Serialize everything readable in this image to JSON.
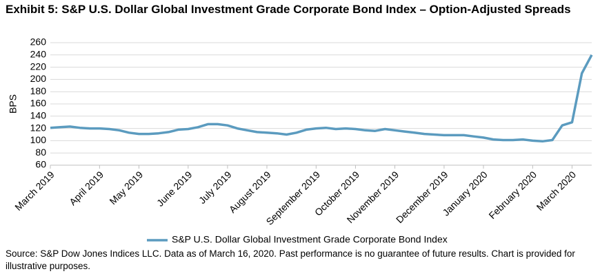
{
  "chart_data": {
    "type": "line",
    "title": "Exhibit 5: S&P U.S. Dollar Global Investment Grade Corporate Bond Index – Option-Adjusted Spreads",
    "y_label": "BPS",
    "source": "Source: S&P Dow Jones Indices LLC. Data as of March 16, 2020. Past performance is no guarantee of future results. Chart is provided for illustrative purposes.",
    "categories": [
      "March 2019",
      null,
      null,
      null,
      null,
      "April 2019",
      null,
      null,
      null,
      "May 2019",
      null,
      null,
      null,
      null,
      "June 2019",
      null,
      null,
      null,
      "July 2019",
      null,
      null,
      null,
      "August 2019",
      null,
      null,
      null,
      null,
      "September 2019",
      null,
      null,
      null,
      "October 2019",
      null,
      null,
      null,
      "November 2019",
      null,
      null,
      null,
      null,
      "December 2019",
      null,
      null,
      null,
      "January 2020",
      null,
      null,
      null,
      null,
      "February 2020",
      null,
      null,
      null,
      "March 2020",
      null,
      null
    ],
    "series": [
      {
        "name": "S&P U.S. Dollar Global Investment Grade Corporate Bond Index",
        "color": "#5b9bbf",
        "values": [
          121,
          122,
          123,
          121,
          120,
          120,
          119,
          117,
          113,
          111,
          111,
          112,
          114,
          118,
          119,
          122,
          127,
          127,
          125,
          120,
          117,
          114,
          113,
          112,
          110,
          113,
          118,
          120,
          121,
          119,
          120,
          119,
          117,
          116,
          119,
          117,
          115,
          113,
          111,
          110,
          109,
          109,
          109,
          107,
          105,
          102,
          101,
          101,
          102,
          100,
          99,
          101,
          125,
          130,
          210,
          240
        ]
      }
    ],
    "ylim": [
      60,
      260
    ],
    "yticks": [
      60,
      80,
      100,
      120,
      140,
      160,
      180,
      200,
      220,
      240,
      260
    ],
    "grid": true,
    "legend": "bottom"
  }
}
